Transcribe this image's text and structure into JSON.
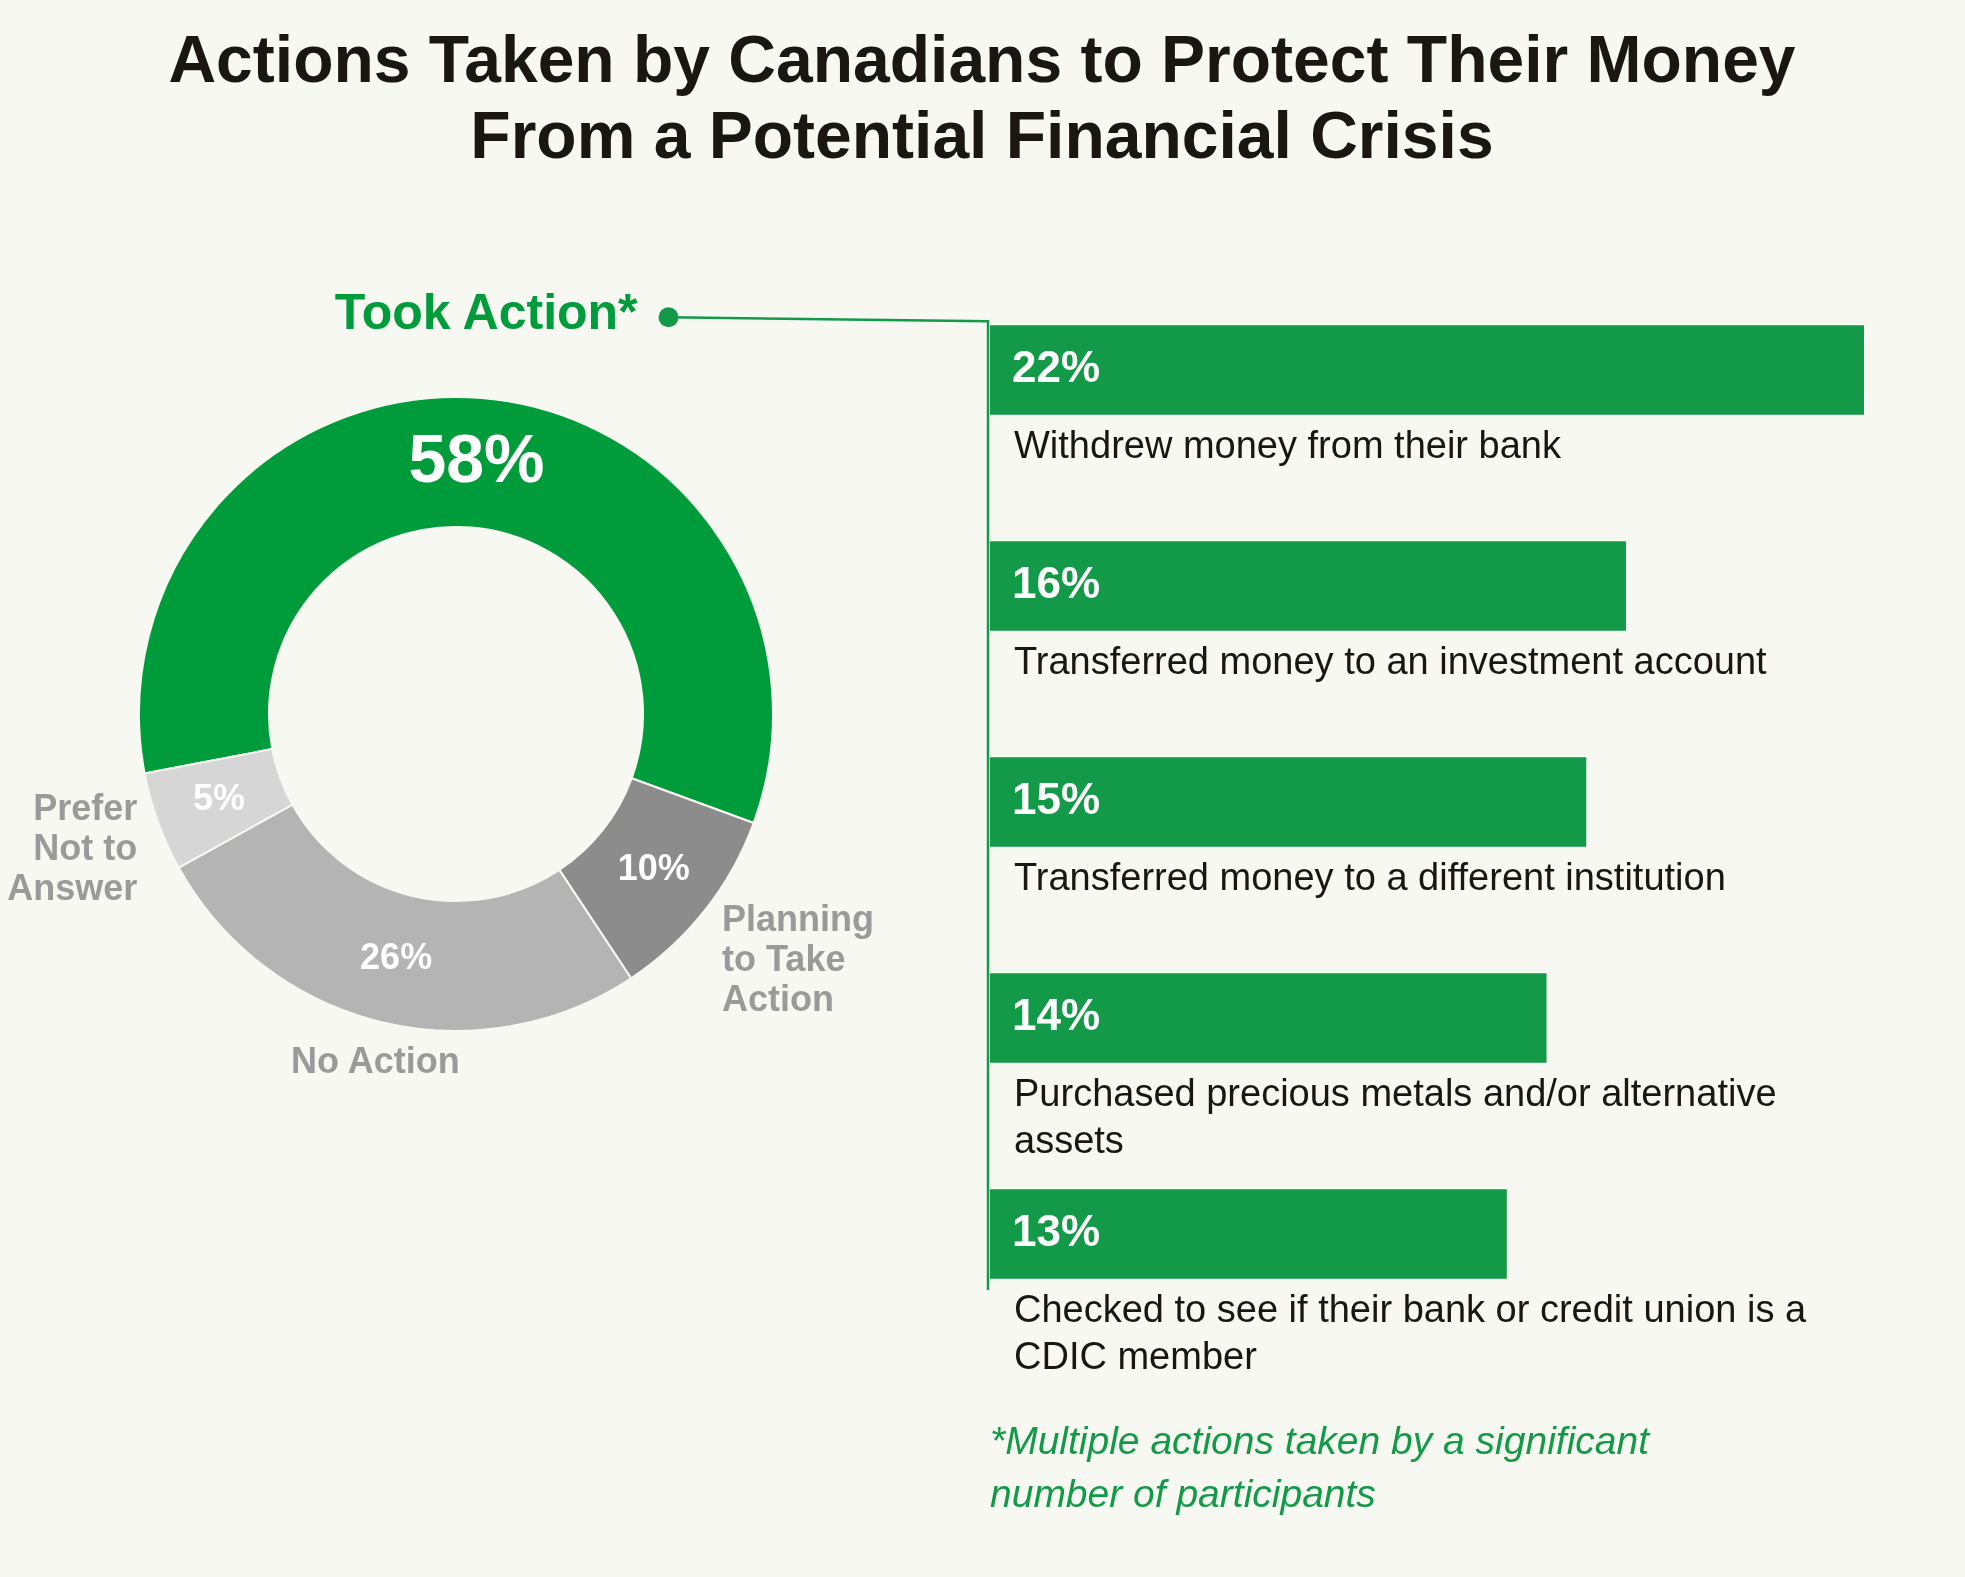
{
  "chart_data": [
    {
      "type": "donut",
      "title": "Actions Taken by Canadians to Protect Their Money From a Potential Financial Crisis",
      "categories": [
        "Took Action*",
        "Planning to Take Action",
        "No Action",
        "Prefer Not to Answer"
      ],
      "values": [
        58,
        10,
        26,
        5
      ],
      "colors": [
        "#009c3b",
        "#8c8c8c",
        "#b4b4b4",
        "#d6d6d6"
      ],
      "value_labels": [
        "58%",
        "10%",
        "26%",
        "5%"
      ],
      "legend": false
    },
    {
      "type": "bar",
      "orientation": "horizontal",
      "categories": [
        "Withdrew money from their bank",
        "Transferred money to an investment account",
        "Transferred money to a different institution",
        "Purchased precious metals and/or alternative assets",
        "Checked to see if their bank or credit union is a CDIC member"
      ],
      "values": [
        22,
        16,
        15,
        14,
        13
      ],
      "color": "#139a48",
      "value_labels": [
        "22%",
        "16%",
        "15%",
        "14%",
        "13%"
      ],
      "legend": false,
      "annotations": [
        "*Multiple actions taken by a significant number of participants"
      ]
    }
  ]
}
